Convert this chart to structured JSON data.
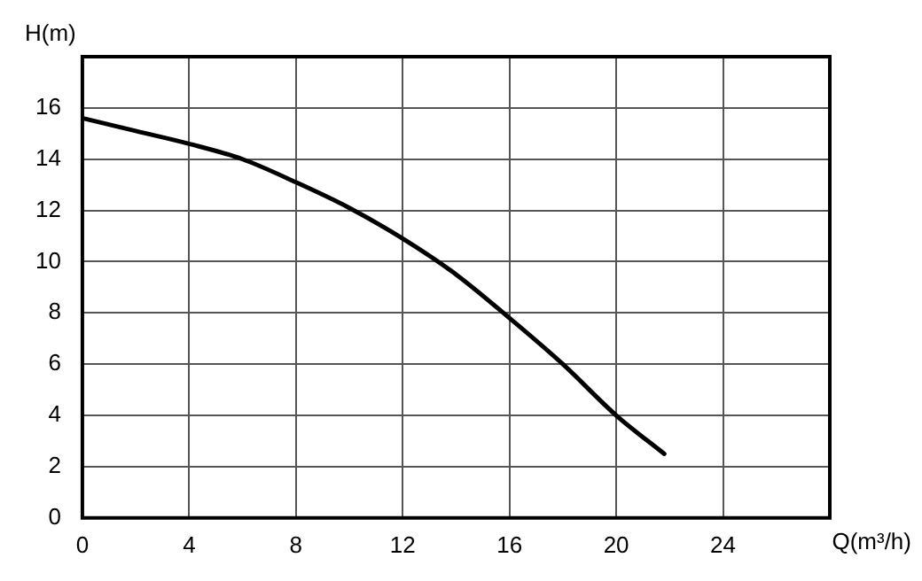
{
  "chart_data": {
    "type": "line",
    "xlabel": "Q(m³/h)",
    "ylabel": "H(m)",
    "xlim": [
      0,
      28
    ],
    "xticks": [
      0,
      4,
      8,
      12,
      16,
      20,
      24
    ],
    "ylim": [
      0,
      18
    ],
    "yticks": [
      0,
      2,
      4,
      6,
      8,
      10,
      12,
      14,
      16
    ],
    "grid": true,
    "marker": "none",
    "line_style": "solid",
    "series": [
      {
        "color": "#000000",
        "x": [
          0,
          2,
          4,
          6,
          8,
          10,
          12,
          14,
          16,
          18,
          20,
          21.8
        ],
        "values": [
          15.6,
          15.1,
          14.6,
          14.0,
          13.1,
          12.1,
          10.9,
          9.5,
          7.8,
          6.0,
          4.0,
          2.5
        ]
      }
    ]
  }
}
